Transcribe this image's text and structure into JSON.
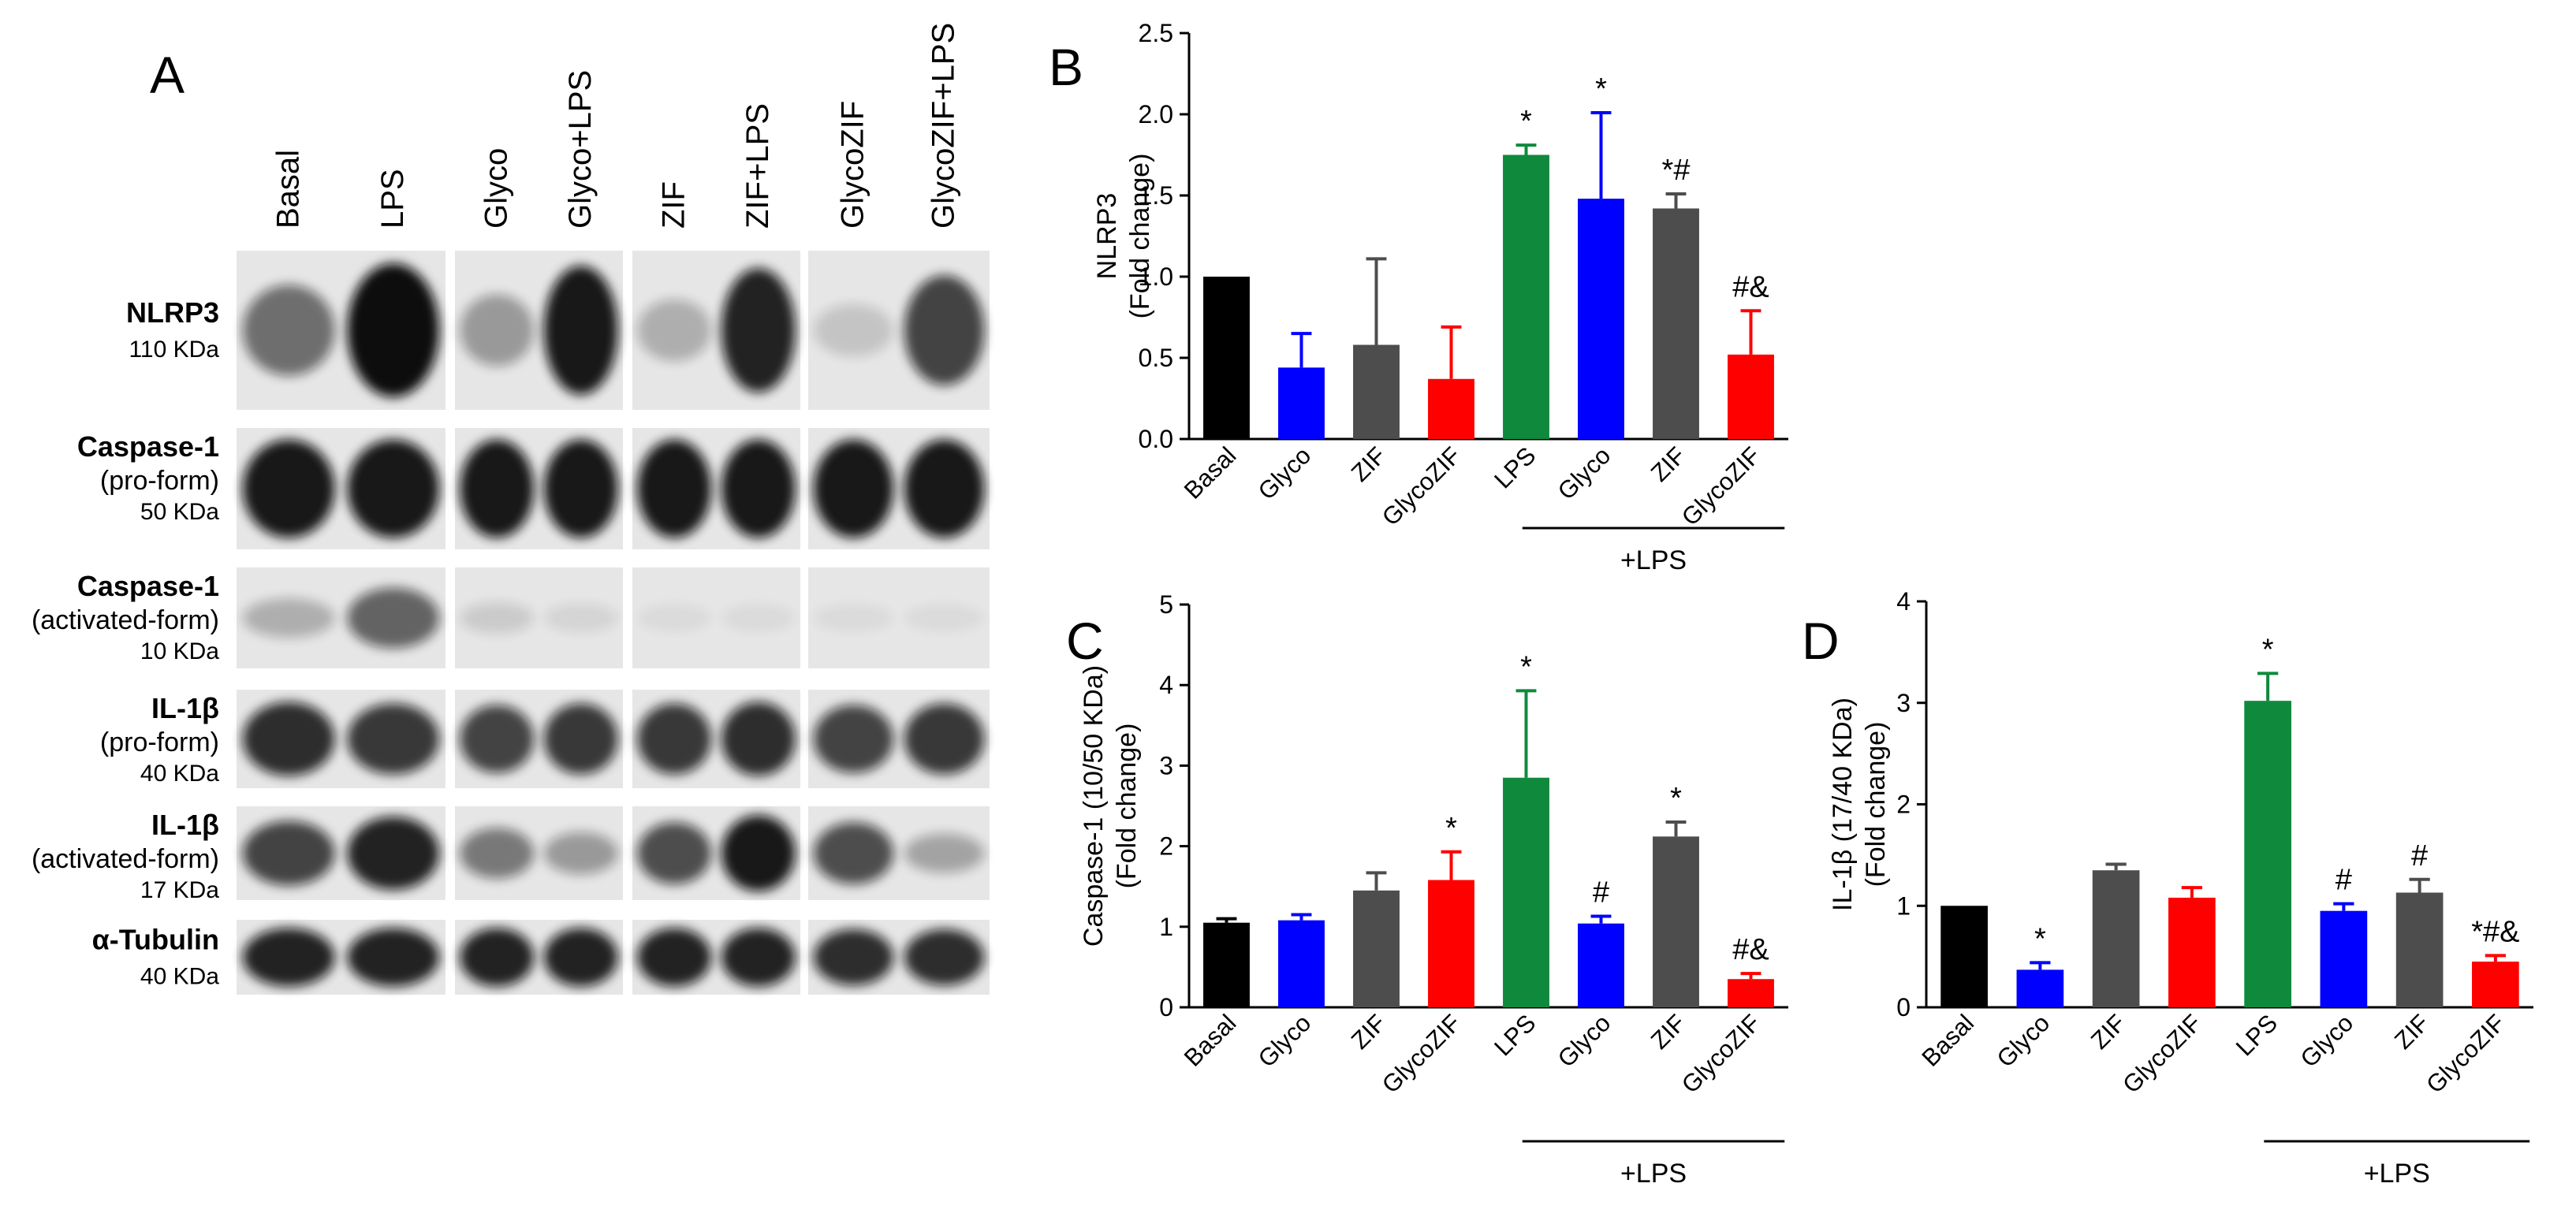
{
  "panel_a": {
    "letter": "A",
    "lanes": [
      "Basal",
      "LPS",
      "Glyco",
      "Glyco+LPS",
      "ZIF",
      "ZIF+LPS",
      "GlycoZIF",
      "GlycoZIF+LPS"
    ],
    "rows": [
      {
        "name": "NLRP3",
        "sub": "",
        "kda": "110 KDa",
        "intensity": [
          0.55,
          1.0,
          0.35,
          0.95,
          0.25,
          0.9,
          0.15,
          0.75
        ]
      },
      {
        "name": "Caspase-1",
        "sub": "(pro-form)",
        "kda": "50 KDa",
        "intensity": [
          0.95,
          0.95,
          0.95,
          0.95,
          0.95,
          0.95,
          0.95,
          0.95
        ]
      },
      {
        "name": "Caspase-1",
        "sub": "(activated-form)",
        "kda": "10 KDa",
        "intensity": [
          0.25,
          0.6,
          0.12,
          0.08,
          0.05,
          0.05,
          0.04,
          0.04
        ]
      },
      {
        "name": "IL-1β",
        "sub": "(pro-form)",
        "kda": "40 KDa",
        "intensity": [
          0.85,
          0.8,
          0.75,
          0.8,
          0.8,
          0.85,
          0.75,
          0.8
        ]
      },
      {
        "name": "IL-1β",
        "sub": "(activated-form)",
        "kda": "17 KDa",
        "intensity": [
          0.75,
          0.9,
          0.5,
          0.35,
          0.7,
          0.95,
          0.7,
          0.3
        ]
      },
      {
        "name": "α-Tubulin",
        "sub": "",
        "kda": "40 KDa",
        "intensity": [
          0.9,
          0.9,
          0.9,
          0.9,
          0.9,
          0.9,
          0.85,
          0.85
        ]
      }
    ]
  },
  "colors": {
    "basal": "#000000",
    "glyco": "#0000ff",
    "zif": "#4d4d4d",
    "glycozif": "#ff0000",
    "lps": "#0f8a3c",
    "blot_bg": "#e6e6e6",
    "band": "#111111"
  },
  "chart_data": [
    {
      "panel": "B",
      "type": "bar",
      "categories": [
        "Basal",
        "Glyco",
        "ZIF",
        "GlycoZIF",
        "LPS",
        "Glyco",
        "ZIF",
        "GlycoZIF"
      ],
      "values": [
        1.0,
        0.44,
        0.58,
        0.37,
        1.75,
        1.48,
        1.42,
        0.52
      ],
      "errors": [
        0.0,
        0.21,
        0.53,
        0.32,
        0.06,
        0.53,
        0.09,
        0.27
      ],
      "bar_colors": [
        "#000000",
        "#0000ff",
        "#4d4d4d",
        "#ff0000",
        "#0f8a3c",
        "#0000ff",
        "#4d4d4d",
        "#ff0000"
      ],
      "annotations": [
        "",
        "",
        "",
        "",
        "*",
        "*",
        "*#",
        "#&"
      ],
      "ylabel_lines": [
        "NLRP3",
        "(Fold change)"
      ],
      "ylim": [
        0,
        2.5
      ],
      "yticks": [
        "0.0",
        "0.5",
        "1.0",
        "1.5",
        "2.0",
        "2.5"
      ],
      "group_label": "+LPS"
    },
    {
      "panel": "C",
      "type": "bar",
      "categories": [
        "Basal",
        "Glyco",
        "ZIF",
        "GlycoZIF",
        "LPS",
        "Glyco",
        "ZIF",
        "GlycoZIF"
      ],
      "values": [
        1.05,
        1.08,
        1.45,
        1.58,
        2.85,
        1.04,
        2.12,
        0.35
      ],
      "errors": [
        0.05,
        0.07,
        0.22,
        0.35,
        1.08,
        0.09,
        0.18,
        0.07
      ],
      "bar_colors": [
        "#000000",
        "#0000ff",
        "#4d4d4d",
        "#ff0000",
        "#0f8a3c",
        "#0000ff",
        "#4d4d4d",
        "#ff0000"
      ],
      "annotations": [
        "",
        "",
        "",
        "*",
        "*",
        "#",
        "*",
        "#&"
      ],
      "ylabel_lines": [
        "Caspase-1 (10/50 KDa)",
        "(Fold change)"
      ],
      "ylim": [
        0,
        5
      ],
      "yticks": [
        "0",
        "1",
        "2",
        "3",
        "4",
        "5"
      ],
      "group_label": "+LPS"
    },
    {
      "panel": "D",
      "type": "bar",
      "categories": [
        "Basal",
        "Glyco",
        "ZIF",
        "GlycoZIF",
        "LPS",
        "Glyco",
        "ZIF",
        "GlycoZIF"
      ],
      "values": [
        1.0,
        0.37,
        1.35,
        1.08,
        3.02,
        0.95,
        1.13,
        0.45
      ],
      "errors": [
        0.0,
        0.07,
        0.06,
        0.1,
        0.27,
        0.07,
        0.13,
        0.06
      ],
      "bar_colors": [
        "#000000",
        "#0000ff",
        "#4d4d4d",
        "#ff0000",
        "#0f8a3c",
        "#0000ff",
        "#4d4d4d",
        "#ff0000"
      ],
      "annotations": [
        "",
        "*",
        "",
        "",
        "*",
        "#",
        "#",
        "*#&"
      ],
      "ylabel_lines": [
        "IL-1β (17/40 KDa)",
        "(Fold change)"
      ],
      "ylim": [
        0,
        4
      ],
      "yticks": [
        "0",
        "1",
        "2",
        "3",
        "4"
      ],
      "group_label": "+LPS"
    }
  ]
}
